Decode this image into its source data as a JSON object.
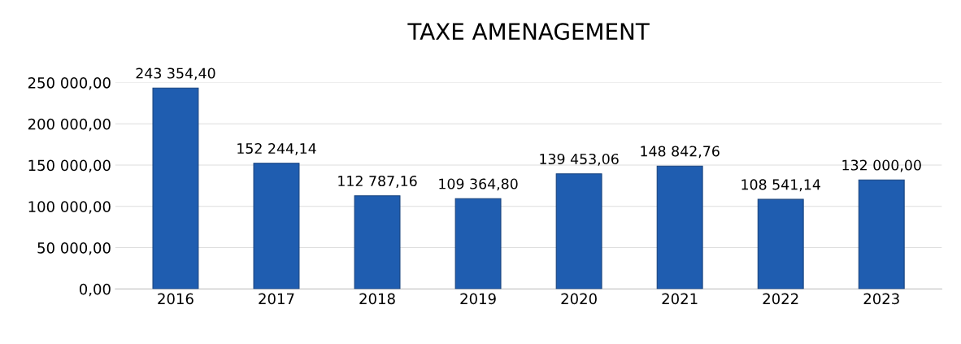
{
  "chart_data": {
    "type": "bar",
    "title": "TAXE AMENAGEMENT",
    "categories": [
      "2016",
      "2017",
      "2018",
      "2019",
      "2020",
      "2021",
      "2022",
      "2023"
    ],
    "values": [
      243354.4,
      152244.14,
      112787.16,
      109364.8,
      139453.06,
      148842.76,
      108541.14,
      132000.0
    ],
    "value_labels": [
      "243 354,40",
      "152 244,14",
      "112 787,16",
      "109 364,80",
      "139 453,06",
      "148 842,76",
      "108 541,14",
      "132 000,00"
    ],
    "color": "#1f5db0",
    "ylim": [
      0,
      250000
    ],
    "yticks": [
      {
        "value": 0,
        "label": "0,00"
      },
      {
        "value": 50000,
        "label": "50 000,00"
      },
      {
        "value": 100000,
        "label": "100 000,00"
      },
      {
        "value": 150000,
        "label": "150 000,00"
      },
      {
        "value": 200000,
        "label": "200 000,00"
      },
      {
        "value": 250000,
        "label": "250 000,00"
      }
    ],
    "grid": "y",
    "legend": false
  }
}
